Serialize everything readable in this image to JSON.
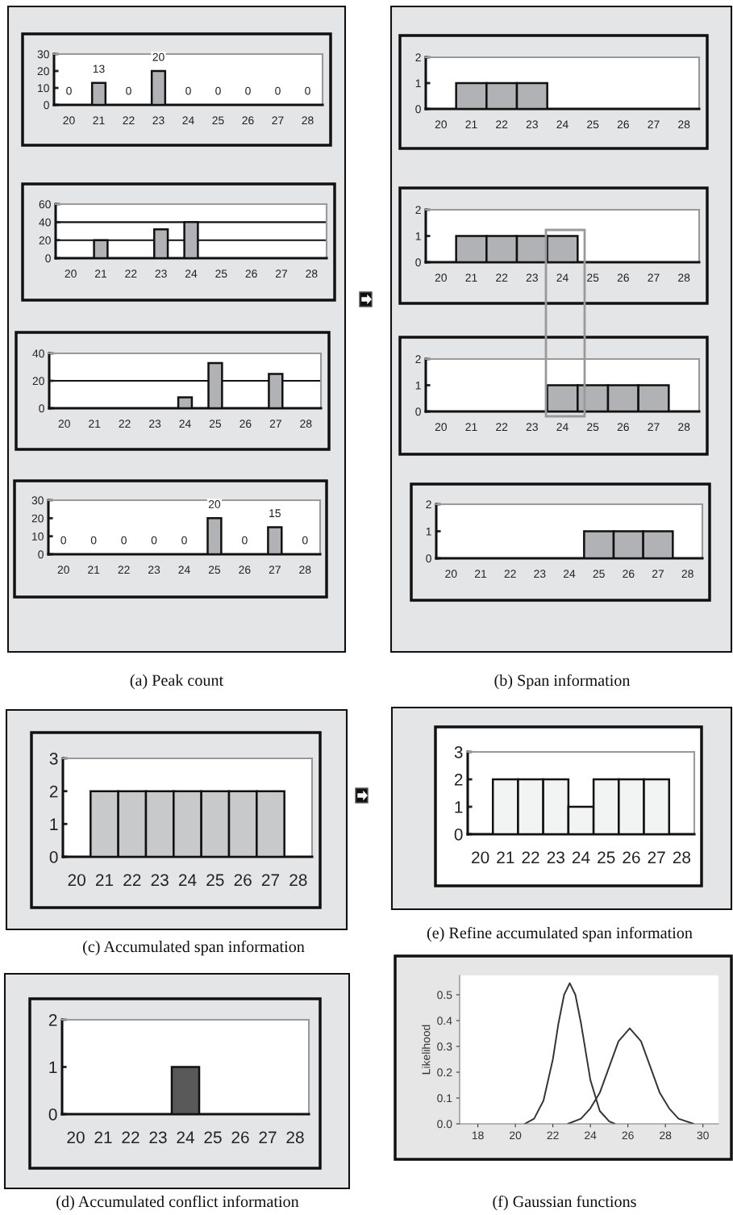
{
  "chart_data": [
    {
      "type": "bar",
      "categories": [
        "20",
        "21",
        "22",
        "23",
        "24",
        "25",
        "26",
        "27",
        "28"
      ],
      "values": [
        0,
        13,
        0,
        20,
        0,
        0,
        0,
        0,
        0
      ],
      "color": "#b1b2b5",
      "ylim": [
        0,
        30
      ],
      "yticks": [
        0,
        10,
        20,
        30
      ],
      "data_labels": true
    },
    {
      "type": "bar",
      "categories": [
        "20",
        "21",
        "22",
        "23",
        "24",
        "25",
        "26",
        "27",
        "28"
      ],
      "values": [
        0,
        20,
        0,
        32,
        40,
        0,
        0,
        0,
        0
      ],
      "color": "#b1b2b5",
      "ylim": [
        0,
        60
      ],
      "yticks": [
        0,
        20,
        40,
        60
      ],
      "grid": "y"
    },
    {
      "type": "bar",
      "categories": [
        "20",
        "21",
        "22",
        "23",
        "24",
        "25",
        "26",
        "27",
        "28"
      ],
      "values": [
        0,
        0,
        0,
        0,
        8,
        33,
        0,
        25,
        0
      ],
      "color": "#b1b2b5",
      "ylim": [
        0,
        40
      ],
      "yticks": [
        0,
        20,
        40
      ],
      "grid": "y"
    },
    {
      "type": "bar",
      "categories": [
        "20",
        "21",
        "22",
        "23",
        "24",
        "25",
        "26",
        "27",
        "28"
      ],
      "values": [
        0,
        0,
        0,
        0,
        0,
        20,
        0,
        15,
        0
      ],
      "color": "#b1b2b5",
      "ylim": [
        0,
        30
      ],
      "yticks": [
        0,
        10,
        20,
        30
      ],
      "data_labels": true,
      "annotations": [
        "(a) Peak count"
      ]
    },
    {
      "type": "bar",
      "categories": [
        "20",
        "21",
        "22",
        "23",
        "24",
        "25",
        "26",
        "27",
        "28"
      ],
      "values": [
        0,
        1,
        1,
        1,
        0,
        0,
        0,
        0,
        0
      ],
      "color": "#b1b2b5",
      "ylim": [
        0,
        2
      ],
      "yticks": [
        0,
        1,
        2
      ]
    },
    {
      "type": "bar",
      "categories": [
        "20",
        "21",
        "22",
        "23",
        "24",
        "25",
        "26",
        "27",
        "28"
      ],
      "values": [
        0,
        1,
        1,
        1,
        1,
        0,
        0,
        0,
        0
      ],
      "color": "#b1b2b5",
      "ylim": [
        0,
        2
      ],
      "yticks": [
        0,
        1,
        2
      ]
    },
    {
      "type": "bar",
      "categories": [
        "20",
        "21",
        "22",
        "23",
        "24",
        "25",
        "26",
        "27",
        "28"
      ],
      "values": [
        0,
        0,
        0,
        0,
        1,
        1,
        1,
        1,
        0
      ],
      "color": "#b1b2b5",
      "ylim": [
        0,
        2
      ],
      "yticks": [
        0,
        1,
        2
      ]
    },
    {
      "type": "bar",
      "categories": [
        "20",
        "21",
        "22",
        "23",
        "24",
        "25",
        "26",
        "27",
        "28"
      ],
      "values": [
        0,
        0,
        0,
        0,
        0,
        1,
        1,
        1,
        0
      ],
      "color": "#b1b2b5",
      "ylim": [
        0,
        2
      ],
      "yticks": [
        0,
        1,
        2
      ],
      "annotations": [
        "(b) Span information"
      ]
    },
    {
      "type": "bar",
      "categories": [
        "20",
        "21",
        "22",
        "23",
        "24",
        "25",
        "26",
        "27",
        "28"
      ],
      "values": [
        0,
        2,
        2,
        2,
        2,
        2,
        2,
        2,
        0
      ],
      "color": "#c8c9cb",
      "ylim": [
        0,
        3
      ],
      "yticks": [
        0,
        1,
        2,
        3
      ],
      "annotations": [
        "(c) Accumulated span information"
      ]
    },
    {
      "type": "bar",
      "categories": [
        "20",
        "21",
        "22",
        "23",
        "24",
        "25",
        "26",
        "27",
        "28"
      ],
      "values": [
        0,
        0,
        0,
        0,
        1,
        0,
        0,
        0,
        0
      ],
      "color": "#595959",
      "ylim": [
        0,
        2
      ],
      "yticks": [
        0,
        1,
        2
      ],
      "annotations": [
        "(d) Accumulated conflict information"
      ]
    },
    {
      "type": "bar",
      "categories": [
        "20",
        "21",
        "22",
        "23",
        "24",
        "25",
        "26",
        "27",
        "28"
      ],
      "values": [
        0,
        2,
        2,
        2,
        1,
        2,
        2,
        2,
        0
      ],
      "color": "#f2f3f3",
      "ylim": [
        0,
        3
      ],
      "yticks": [
        0,
        1,
        2,
        3
      ],
      "annotations": [
        "(e) Refine accumulated span information"
      ]
    },
    {
      "type": "line",
      "ylabel": "Likelihood",
      "xlim": [
        17.03,
        30.83
      ],
      "xticks": [
        18,
        20,
        22,
        24,
        26,
        28,
        30
      ],
      "ylim": [
        0,
        0.575
      ],
      "yticks": [
        {
          "value": 0,
          "label": "0.0"
        },
        {
          "value": 0.1,
          "label": "0.1"
        },
        {
          "value": 0.2,
          "label": "0.2"
        },
        {
          "value": 0.3,
          "label": "0.3"
        },
        {
          "value": 0.4,
          "label": "0.4"
        },
        {
          "value": 0.5,
          "label": "0.5"
        }
      ],
      "annotations": [
        "(f) Gaussian functions"
      ],
      "series": [
        {
          "color": "#333333",
          "x": [
            20.5,
            21,
            21.5,
            22,
            22.3,
            22.6,
            22.9,
            23.2,
            23.5,
            24,
            24.5,
            25,
            25.3
          ],
          "values": [
            0.0,
            0.02,
            0.09,
            0.25,
            0.39,
            0.5,
            0.545,
            0.5,
            0.39,
            0.17,
            0.05,
            0.01,
            0.0
          ]
        },
        {
          "color": "#333333",
          "x": [
            22.8,
            23.5,
            24,
            24.5,
            25,
            25.5,
            26.1,
            26.7,
            27.2,
            27.7,
            28.2,
            28.7,
            29.5
          ],
          "values": [
            0.0,
            0.02,
            0.06,
            0.12,
            0.22,
            0.32,
            0.37,
            0.32,
            0.22,
            0.12,
            0.06,
            0.02,
            0.0
          ]
        }
      ]
    }
  ]
}
